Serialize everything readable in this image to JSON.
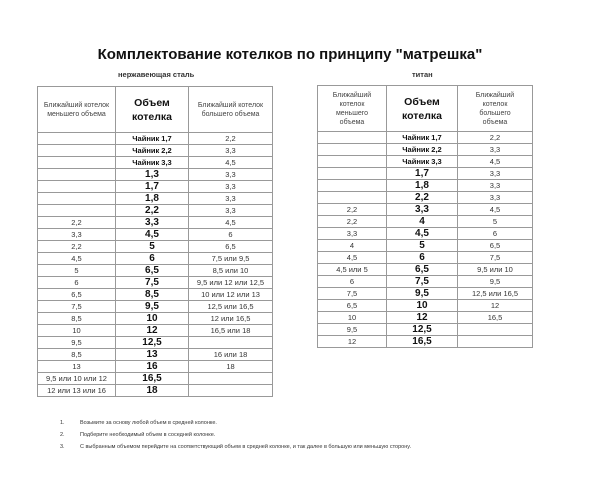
{
  "title": "Комплектование котелков по принципу \"матрешка\"",
  "steel": {
    "label": "нержавеющая сталь",
    "headers": [
      "Ближайший котелок меньшего объема",
      "Объем котелка",
      "Ближайший котелок  большего объема"
    ],
    "rows": [
      [
        "",
        "Чайник 1,7",
        "2,2"
      ],
      [
        "",
        "Чайник 2,2",
        "3,3"
      ],
      [
        "",
        "Чайник 3,3",
        "4,5"
      ],
      [
        "",
        "1,3",
        "3,3"
      ],
      [
        "",
        "1,7",
        "3,3"
      ],
      [
        "",
        "1,8",
        "3,3"
      ],
      [
        "",
        "2,2",
        "3,3"
      ],
      [
        "2,2",
        "3,3",
        "4,5"
      ],
      [
        "3,3",
        "4,5",
        "6"
      ],
      [
        "2,2",
        "5",
        "6,5"
      ],
      [
        "4,5",
        "6",
        "7,5 или 9,5"
      ],
      [
        "5",
        "6,5",
        "8,5 или 10"
      ],
      [
        "6",
        "7,5",
        "9,5 или 12 или 12,5"
      ],
      [
        "6,5",
        "8,5",
        "10 или 12 или 13"
      ],
      [
        "7,5",
        "9,5",
        "12,5 или 16,5"
      ],
      [
        "8,5",
        "10",
        "12 или 16,5"
      ],
      [
        "10",
        "12",
        "16,5 или 18"
      ],
      [
        "9,5",
        "12,5",
        ""
      ],
      [
        "8,5",
        "13",
        "16 или 18"
      ],
      [
        "13",
        "16",
        "18"
      ],
      [
        "9,5 или 10 или 12",
        "16,5",
        ""
      ],
      [
        "12 или 13 или 16",
        "18",
        ""
      ]
    ]
  },
  "titan": {
    "label": "титан",
    "headers": [
      "Ближайший котелок меньшего объема",
      "Объем котелка",
      "Ближайший котелок большего объема"
    ],
    "rows": [
      [
        "",
        "Чайник 1,7",
        "2,2"
      ],
      [
        "",
        "Чайник 2,2",
        "3,3"
      ],
      [
        "",
        "Чайник 3,3",
        "4,5"
      ],
      [
        "",
        "1,7",
        "3,3"
      ],
      [
        "",
        "1,8",
        "3,3"
      ],
      [
        "",
        "2,2",
        "3,3"
      ],
      [
        "2,2",
        "3,3",
        "4,5"
      ],
      [
        "2,2",
        "4",
        "5"
      ],
      [
        "3,3",
        "4,5",
        "6"
      ],
      [
        "4",
        "5",
        "6,5"
      ],
      [
        "4,5",
        "6",
        "7,5"
      ],
      [
        "4,5 или 5",
        "6,5",
        "9,5 или 10"
      ],
      [
        "6",
        "7,5",
        "9,5"
      ],
      [
        "7,5",
        "9,5",
        "12,5 или 16,5"
      ],
      [
        "6,5",
        "10",
        "12"
      ],
      [
        "10",
        "12",
        "16,5"
      ],
      [
        "9,5",
        "12,5",
        ""
      ],
      [
        "12",
        "16,5",
        ""
      ]
    ]
  },
  "notes": [
    {
      "num": "1.",
      "text": "Возьмите за основу любой объем в средней колонке."
    },
    {
      "num": "2.",
      "text": "Подберите необходимый объем в соседней колонке."
    },
    {
      "num": "3.",
      "text": "С выбранным объемом перейдите на соответствующий объем в средней колонке, и так далее в большую или меньшую сторону."
    }
  ]
}
